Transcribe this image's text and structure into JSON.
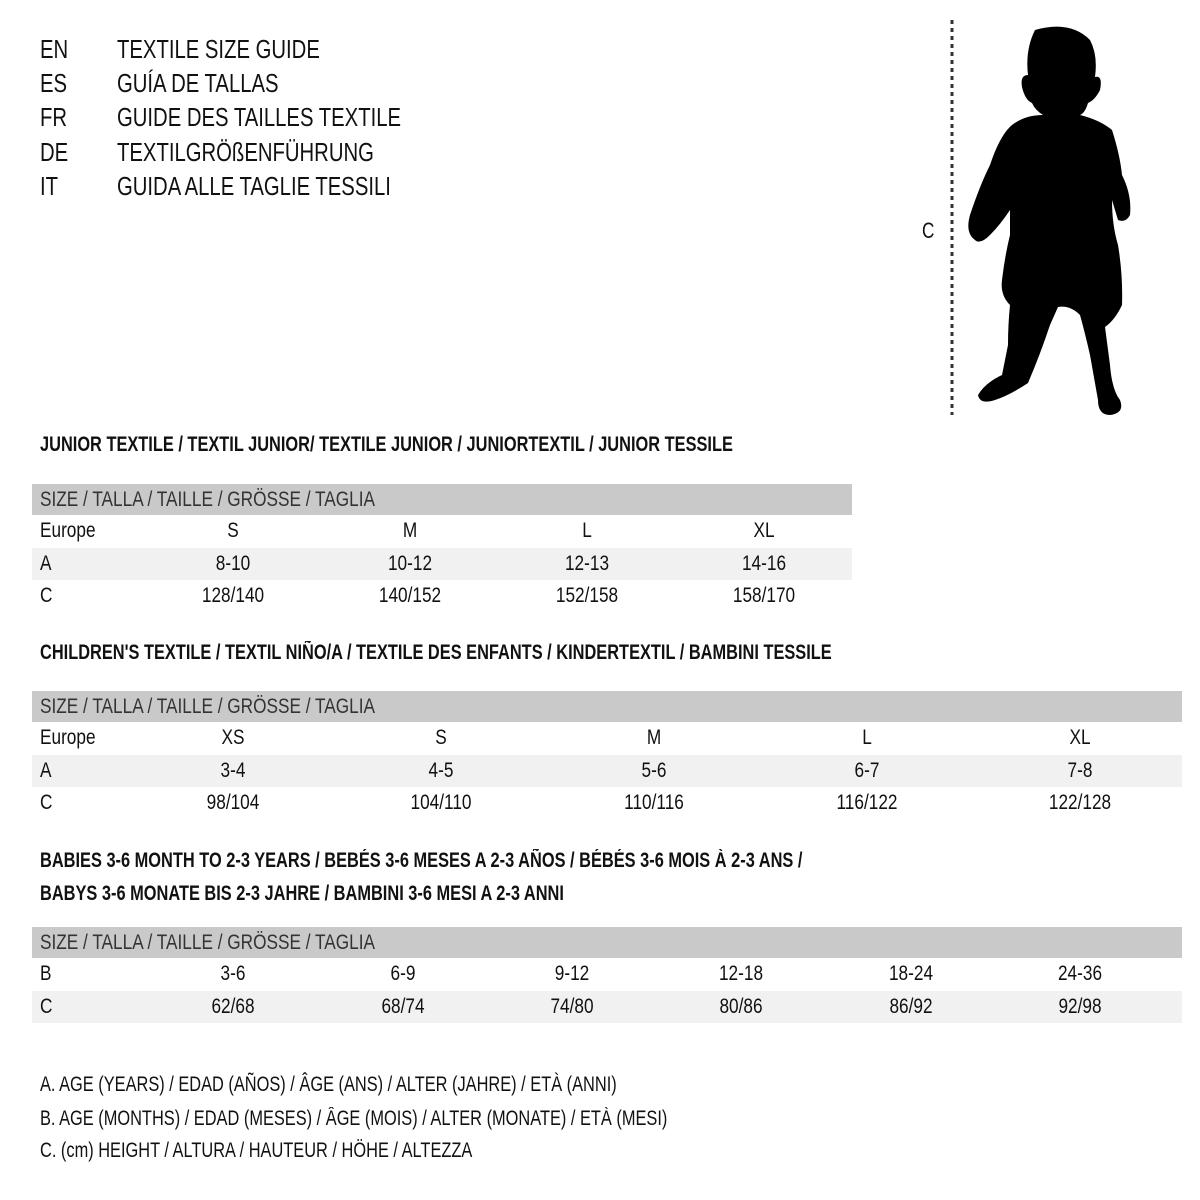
{
  "header": {
    "lines": [
      {
        "code": "EN",
        "title": "TEXTILE SIZE GUIDE"
      },
      {
        "code": "ES",
        "title": "GUÍA DE TALLAS"
      },
      {
        "code": "FR",
        "title": "GUIDE DES TAILLES TEXTILE"
      },
      {
        "code": "DE",
        "title": "TEXTILGRÖßENFÜHRUNG"
      },
      {
        "code": "IT",
        "title": "GUIDA ALLE TAGLIE TESSILI"
      }
    ]
  },
  "figure": {
    "measure_label": "C",
    "icon": "child-silhouette-icon"
  },
  "colors": {
    "header_row": "#c9c9c9",
    "alt_row": "#f1f1f1"
  },
  "sections": [
    {
      "title": "JUNIOR TEXTILE / TEXTIL JUNIOR/ TEXTILE JUNIOR / JUNIORTEXTIL / JUNIOR TESSILE",
      "title2": "",
      "header": "SIZE / TALLA / TAILLE / GRÖSSE / TAGLIA",
      "rows": [
        {
          "label": "Europe",
          "values": [
            "S",
            "M",
            "L",
            "XL"
          ]
        },
        {
          "label": "A",
          "values": [
            "8-10",
            "10-12",
            "12-13",
            "14-16"
          ]
        },
        {
          "label": "C",
          "values": [
            "128/140",
            "140/152",
            "152/158",
            "158/170"
          ]
        }
      ]
    },
    {
      "title": "CHILDREN'S TEXTILE / TEXTIL NIÑO/A / TEXTILE DES ENFANTS / KINDERTEXTIL / BAMBINI TESSILE",
      "title2": "",
      "header": "SIZE / TALLA / TAILLE / GRÖSSE / TAGLIA",
      "rows": [
        {
          "label": "Europe",
          "values": [
            "XS",
            "S",
            "M",
            "L",
            "XL"
          ]
        },
        {
          "label": "A",
          "values": [
            "3-4",
            "4-5",
            "5-6",
            "6-7",
            "7-8"
          ]
        },
        {
          "label": "C",
          "values": [
            "98/104",
            "104/110",
            "110/116",
            "116/122",
            "122/128"
          ]
        }
      ]
    },
    {
      "title": "BABIES 3-6 MONTH TO 2-3 YEARS / BEBÉS 3-6 MESES A 2-3 AÑOS / BÉBÉS 3-6 MOIS À 2-3 ANS /",
      "title2": "BABYS 3-6 MONATE BIS 2-3 JAHRE / BAMBINI 3-6 MESI A 2-3 ANNI",
      "header": "SIZE / TALLA / TAILLE / GRÖSSE / TAGLIA",
      "rows": [
        {
          "label": "B",
          "values": [
            "3-6",
            "6-9",
            "9-12",
            "12-18",
            "18-24",
            "24-36"
          ]
        },
        {
          "label": "C",
          "values": [
            "62/68",
            "68/74",
            "74/80",
            "80/86",
            "86/92",
            "92/98"
          ]
        }
      ]
    }
  ],
  "legend": [
    "A. AGE (YEARS) / EDAD (AÑOS) / ÂGE (ANS) / ALTER (JAHRE) / ETÀ (ANNI)",
    "B. AGE (MONTHS) / EDAD (MESES) / ÂGE (MOIS) / ALTER (MONATE) / ETÀ (MESI)",
    "C. (cm) HEIGHT / ALTURA / HAUTEUR / HÖHE / ALTEZZA"
  ]
}
